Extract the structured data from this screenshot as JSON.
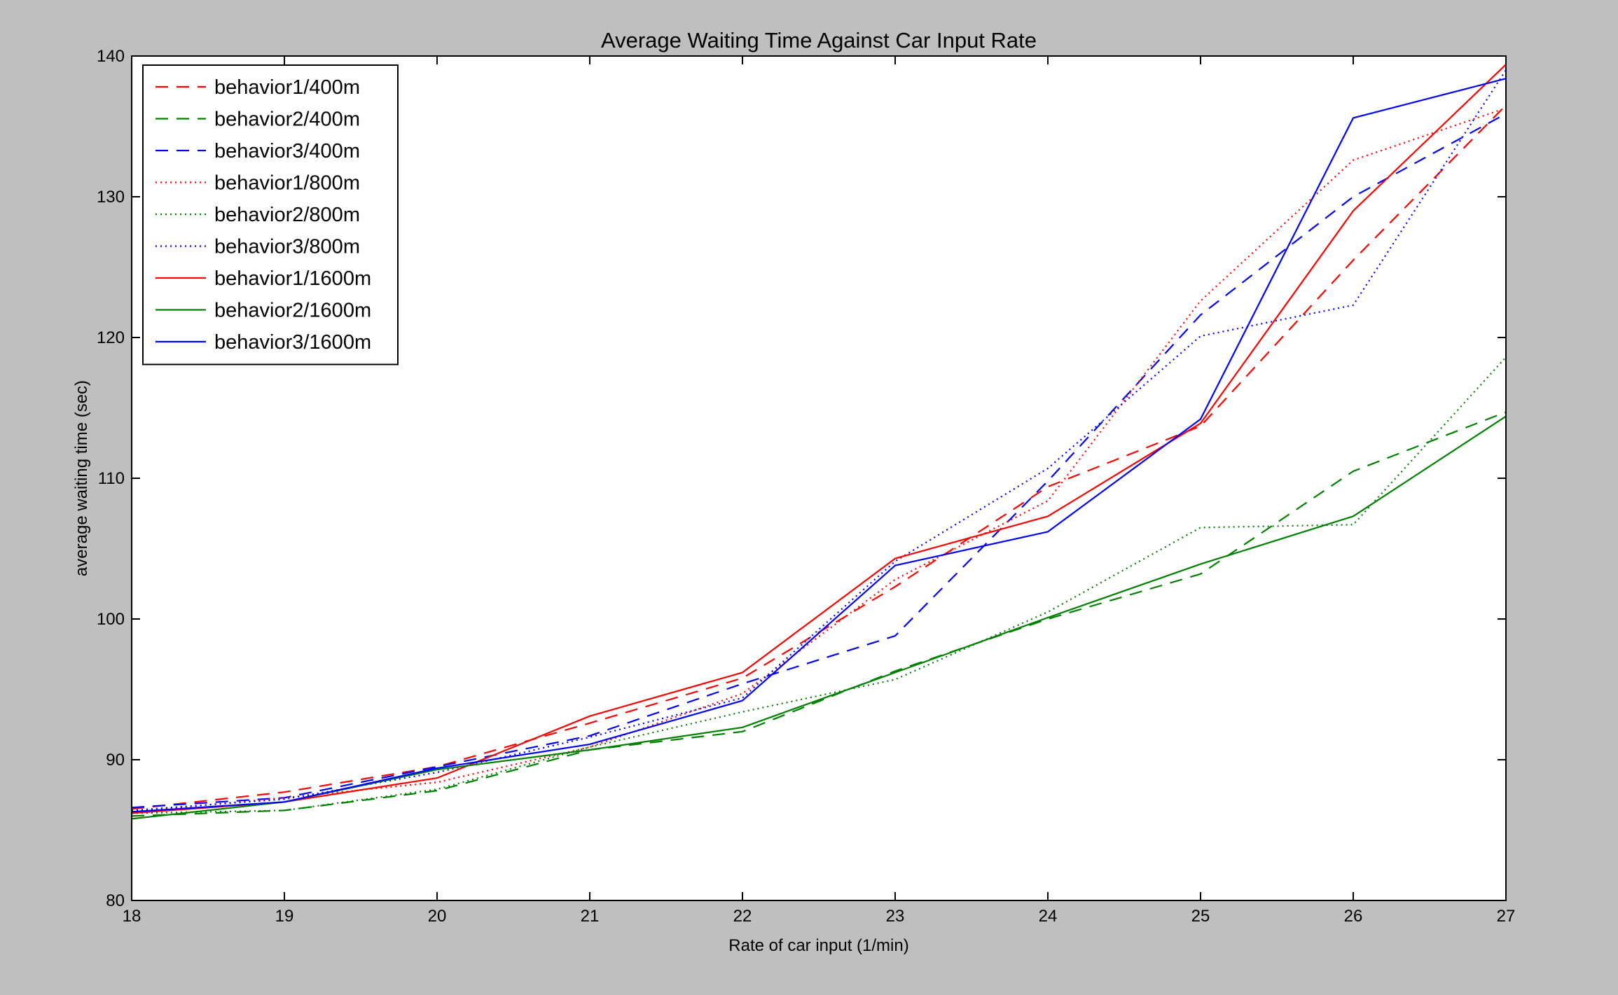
{
  "chart_data": {
    "type": "line",
    "title": "Average Waiting Time Against Car Input Rate",
    "xlabel": "Rate of car input (1/min)",
    "ylabel": "average waiting time (sec)",
    "xlim": [
      18,
      27
    ],
    "ylim": [
      80,
      140
    ],
    "xticks": [
      "18",
      "19",
      "20",
      "21",
      "22",
      "23",
      "24",
      "25",
      "26",
      "27"
    ],
    "yticks": [
      "80",
      "90",
      "100",
      "110",
      "120",
      "130",
      "140"
    ],
    "grid": false,
    "legend_position": "top-left",
    "x": [
      18,
      19,
      20,
      21,
      22,
      23,
      24,
      25,
      26,
      27
    ],
    "series": [
      {
        "name": "behavior1/400m",
        "color": "#ff0000",
        "style": "dashed",
        "values": [
          86.5,
          87.7,
          89.5,
          92.6,
          95.8,
          102.3,
          109.4,
          113.7,
          125.5,
          136.5
        ]
      },
      {
        "name": "behavior2/400m",
        "color": "#008000",
        "style": "dashed",
        "values": [
          86.0,
          86.4,
          87.8,
          90.7,
          92.0,
          96.3,
          100.0,
          103.2,
          110.5,
          114.7
        ]
      },
      {
        "name": "behavior3/400m",
        "color": "#0000ff",
        "style": "dashed",
        "values": [
          86.6,
          87.3,
          89.5,
          91.7,
          95.4,
          98.8,
          109.8,
          121.6,
          130.0,
          135.9
        ]
      },
      {
        "name": "behavior1/800m",
        "color": "#ff0000",
        "style": "dotted",
        "values": [
          86.3,
          87.3,
          88.4,
          90.9,
          94.7,
          102.8,
          108.4,
          122.6,
          132.6,
          136.3
        ]
      },
      {
        "name": "behavior2/800m",
        "color": "#008000",
        "style": "dotted",
        "values": [
          86.2,
          86.4,
          87.9,
          90.9,
          93.4,
          95.7,
          100.5,
          106.5,
          106.7,
          118.6
        ]
      },
      {
        "name": "behavior3/800m",
        "color": "#0000ff",
        "style": "dotted",
        "values": [
          86.4,
          87.2,
          89.1,
          91.6,
          94.4,
          104.1,
          110.7,
          120.1,
          122.3,
          139.0
        ]
      },
      {
        "name": "behavior1/1600m",
        "color": "#ff0000",
        "style": "solid",
        "values": [
          86.2,
          87.0,
          88.7,
          93.1,
          96.2,
          104.3,
          107.3,
          113.9,
          129.0,
          139.4
        ]
      },
      {
        "name": "behavior2/1600m",
        "color": "#008000",
        "style": "solid",
        "values": [
          85.8,
          87.0,
          89.3,
          90.7,
          92.3,
          96.2,
          100.1,
          103.9,
          107.3,
          114.4
        ]
      },
      {
        "name": "behavior3/1600m",
        "color": "#0000ff",
        "style": "solid",
        "values": [
          86.3,
          87.0,
          89.4,
          91.1,
          94.2,
          103.8,
          106.2,
          114.2,
          135.6,
          138.4
        ]
      }
    ]
  }
}
